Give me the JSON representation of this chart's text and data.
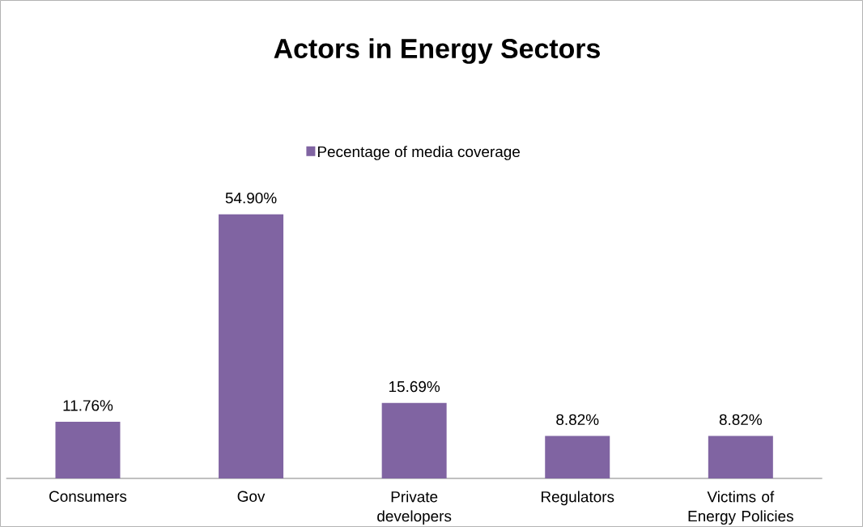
{
  "chart_data": {
    "type": "bar",
    "title": "Actors in Energy Sectors",
    "categories": [
      "Consumers",
      "Gov",
      "Private developers",
      "Regulators",
      "Victims of Energy Policies"
    ],
    "series": [
      {
        "name": "Pecentage of media coverage",
        "color": "#8064a2",
        "values": [
          11.76,
          54.9,
          15.69,
          8.82,
          8.82
        ],
        "value_labels": [
          "11.76%",
          "54.90%",
          "15.69%",
          "8.82%",
          "8.82%"
        ]
      }
    ],
    "legend": "top"
  }
}
